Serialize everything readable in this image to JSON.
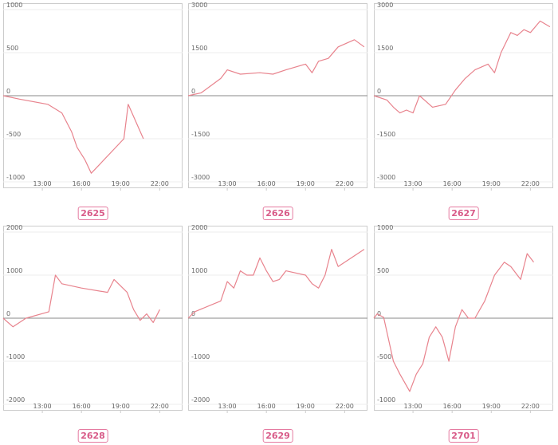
{
  "colors": {
    "line": "#e8838d",
    "zero_line": "#8a8a8a",
    "grid": "#ececec",
    "frame": "#cccccc",
    "badge_border": "#e57aa0",
    "badge_text": "#d85b88"
  },
  "chart_data": [
    {
      "type": "line",
      "label": "2625",
      "ylim": [
        -1000,
        1000
      ],
      "yticks": [
        1000,
        500,
        0,
        -500,
        -1000
      ],
      "xlim": [
        "10:00",
        "23:45"
      ],
      "xticks": [
        "13:00",
        "16:00",
        "19:00",
        "22:00"
      ],
      "series": [
        {
          "x": [
            "10:00",
            "11:15",
            "13:25",
            "14:30",
            "15:15",
            "15:40",
            "16:15",
            "16:45",
            "19:15",
            "19:35",
            "20:45"
          ],
          "y": [
            0,
            -40,
            -100,
            -200,
            -420,
            -600,
            -740,
            -900,
            -500,
            -100,
            -500
          ]
        }
      ]
    },
    {
      "type": "line",
      "label": "2626",
      "ylim": [
        -3000,
        3000
      ],
      "yticks": [
        3000,
        1500,
        0,
        -1500,
        -3000
      ],
      "xlim": [
        "10:00",
        "23:45"
      ],
      "xticks": [
        "13:00",
        "16:00",
        "19:00",
        "22:00"
      ],
      "series": [
        {
          "x": [
            "10:00",
            "11:00",
            "12:30",
            "13:00",
            "14:00",
            "15:30",
            "16:30",
            "17:30",
            "19:00",
            "19:30",
            "20:00",
            "20:45",
            "21:30",
            "22:00",
            "22:45",
            "23:30"
          ],
          "y": [
            0,
            100,
            600,
            900,
            750,
            800,
            750,
            900,
            1100,
            800,
            1200,
            1300,
            1700,
            1800,
            1950,
            1700
          ]
        }
      ]
    },
    {
      "type": "line",
      "label": "2627",
      "ylim": [
        -3000,
        3000
      ],
      "yticks": [
        3000,
        1500,
        0,
        -1500,
        -3000
      ],
      "xlim": [
        "10:00",
        "23:45"
      ],
      "xticks": [
        "13:00",
        "16:00",
        "19:00",
        "22:00"
      ],
      "series": [
        {
          "x": [
            "10:00",
            "11:00",
            "11:30",
            "12:00",
            "12:30",
            "13:00",
            "13:30",
            "14:30",
            "15:30",
            "16:15",
            "17:00",
            "17:45",
            "18:45",
            "19:15",
            "19:45",
            "20:30",
            "21:00",
            "21:30",
            "22:00",
            "22:45",
            "23:30"
          ],
          "y": [
            0,
            -150,
            -400,
            -600,
            -500,
            -600,
            0,
            -400,
            -300,
            200,
            600,
            900,
            1100,
            800,
            1500,
            2200,
            2100,
            2300,
            2200,
            2600,
            2400
          ]
        }
      ]
    },
    {
      "type": "line",
      "label": "2628",
      "ylim": [
        -2000,
        2000
      ],
      "yticks": [
        2000,
        1000,
        0,
        -1000,
        -2000
      ],
      "xlim": [
        "10:00",
        "23:45"
      ],
      "xticks": [
        "13:00",
        "16:00",
        "19:00",
        "22:00"
      ],
      "series": [
        {
          "x": [
            "10:00",
            "10:45",
            "11:45",
            "13:30",
            "14:00",
            "14:30",
            "16:00",
            "18:00",
            "18:30",
            "19:30",
            "20:00",
            "20:30",
            "21:00",
            "21:30",
            "22:00"
          ],
          "y": [
            0,
            -200,
            0,
            150,
            1000,
            800,
            700,
            600,
            900,
            600,
            200,
            -50,
            100,
            -100,
            200
          ]
        }
      ]
    },
    {
      "type": "line",
      "label": "2629",
      "ylim": [
        -2000,
        2000
      ],
      "yticks": [
        2000,
        1000,
        0,
        -1000,
        -2000
      ],
      "xlim": [
        "10:00",
        "23:45"
      ],
      "xticks": [
        "13:00",
        "16:00",
        "19:00",
        "22:00"
      ],
      "series": [
        {
          "x": [
            "10:00",
            "10:30",
            "12:30",
            "13:00",
            "13:30",
            "14:00",
            "14:30",
            "15:00",
            "15:30",
            "16:00",
            "16:30",
            "17:00",
            "17:30",
            "19:00",
            "19:30",
            "20:00",
            "20:30",
            "21:00",
            "21:30",
            "23:30"
          ],
          "y": [
            0,
            150,
            400,
            850,
            700,
            1100,
            1000,
            1000,
            1400,
            1100,
            850,
            900,
            1100,
            1000,
            800,
            700,
            1000,
            1600,
            1200,
            1600
          ]
        }
      ]
    },
    {
      "type": "line",
      "label": "2701",
      "ylim": [
        -1000,
        1000
      ],
      "yticks": [
        1000,
        500,
        0,
        -500,
        -1000
      ],
      "xlim": [
        "10:00",
        "23:45"
      ],
      "xticks": [
        "13:00",
        "16:00",
        "19:00",
        "22:00"
      ],
      "series": [
        {
          "x": [
            "10:00",
            "10:15",
            "10:45",
            "11:30",
            "12:00",
            "12:45",
            "13:15",
            "13:45",
            "14:15",
            "14:45",
            "15:15",
            "15:45",
            "16:15",
            "16:45",
            "17:15",
            "17:45",
            "18:30",
            "19:00",
            "19:15",
            "20:00",
            "20:30",
            "20:45",
            "21:15",
            "21:45",
            "22:15"
          ],
          "y": [
            0,
            50,
            10,
            -500,
            -650,
            -850,
            -650,
            -530,
            -220,
            -100,
            -220,
            -500,
            -100,
            100,
            0,
            0,
            200,
            400,
            500,
            650,
            600,
            550,
            450,
            750,
            650
          ]
        }
      ]
    }
  ]
}
